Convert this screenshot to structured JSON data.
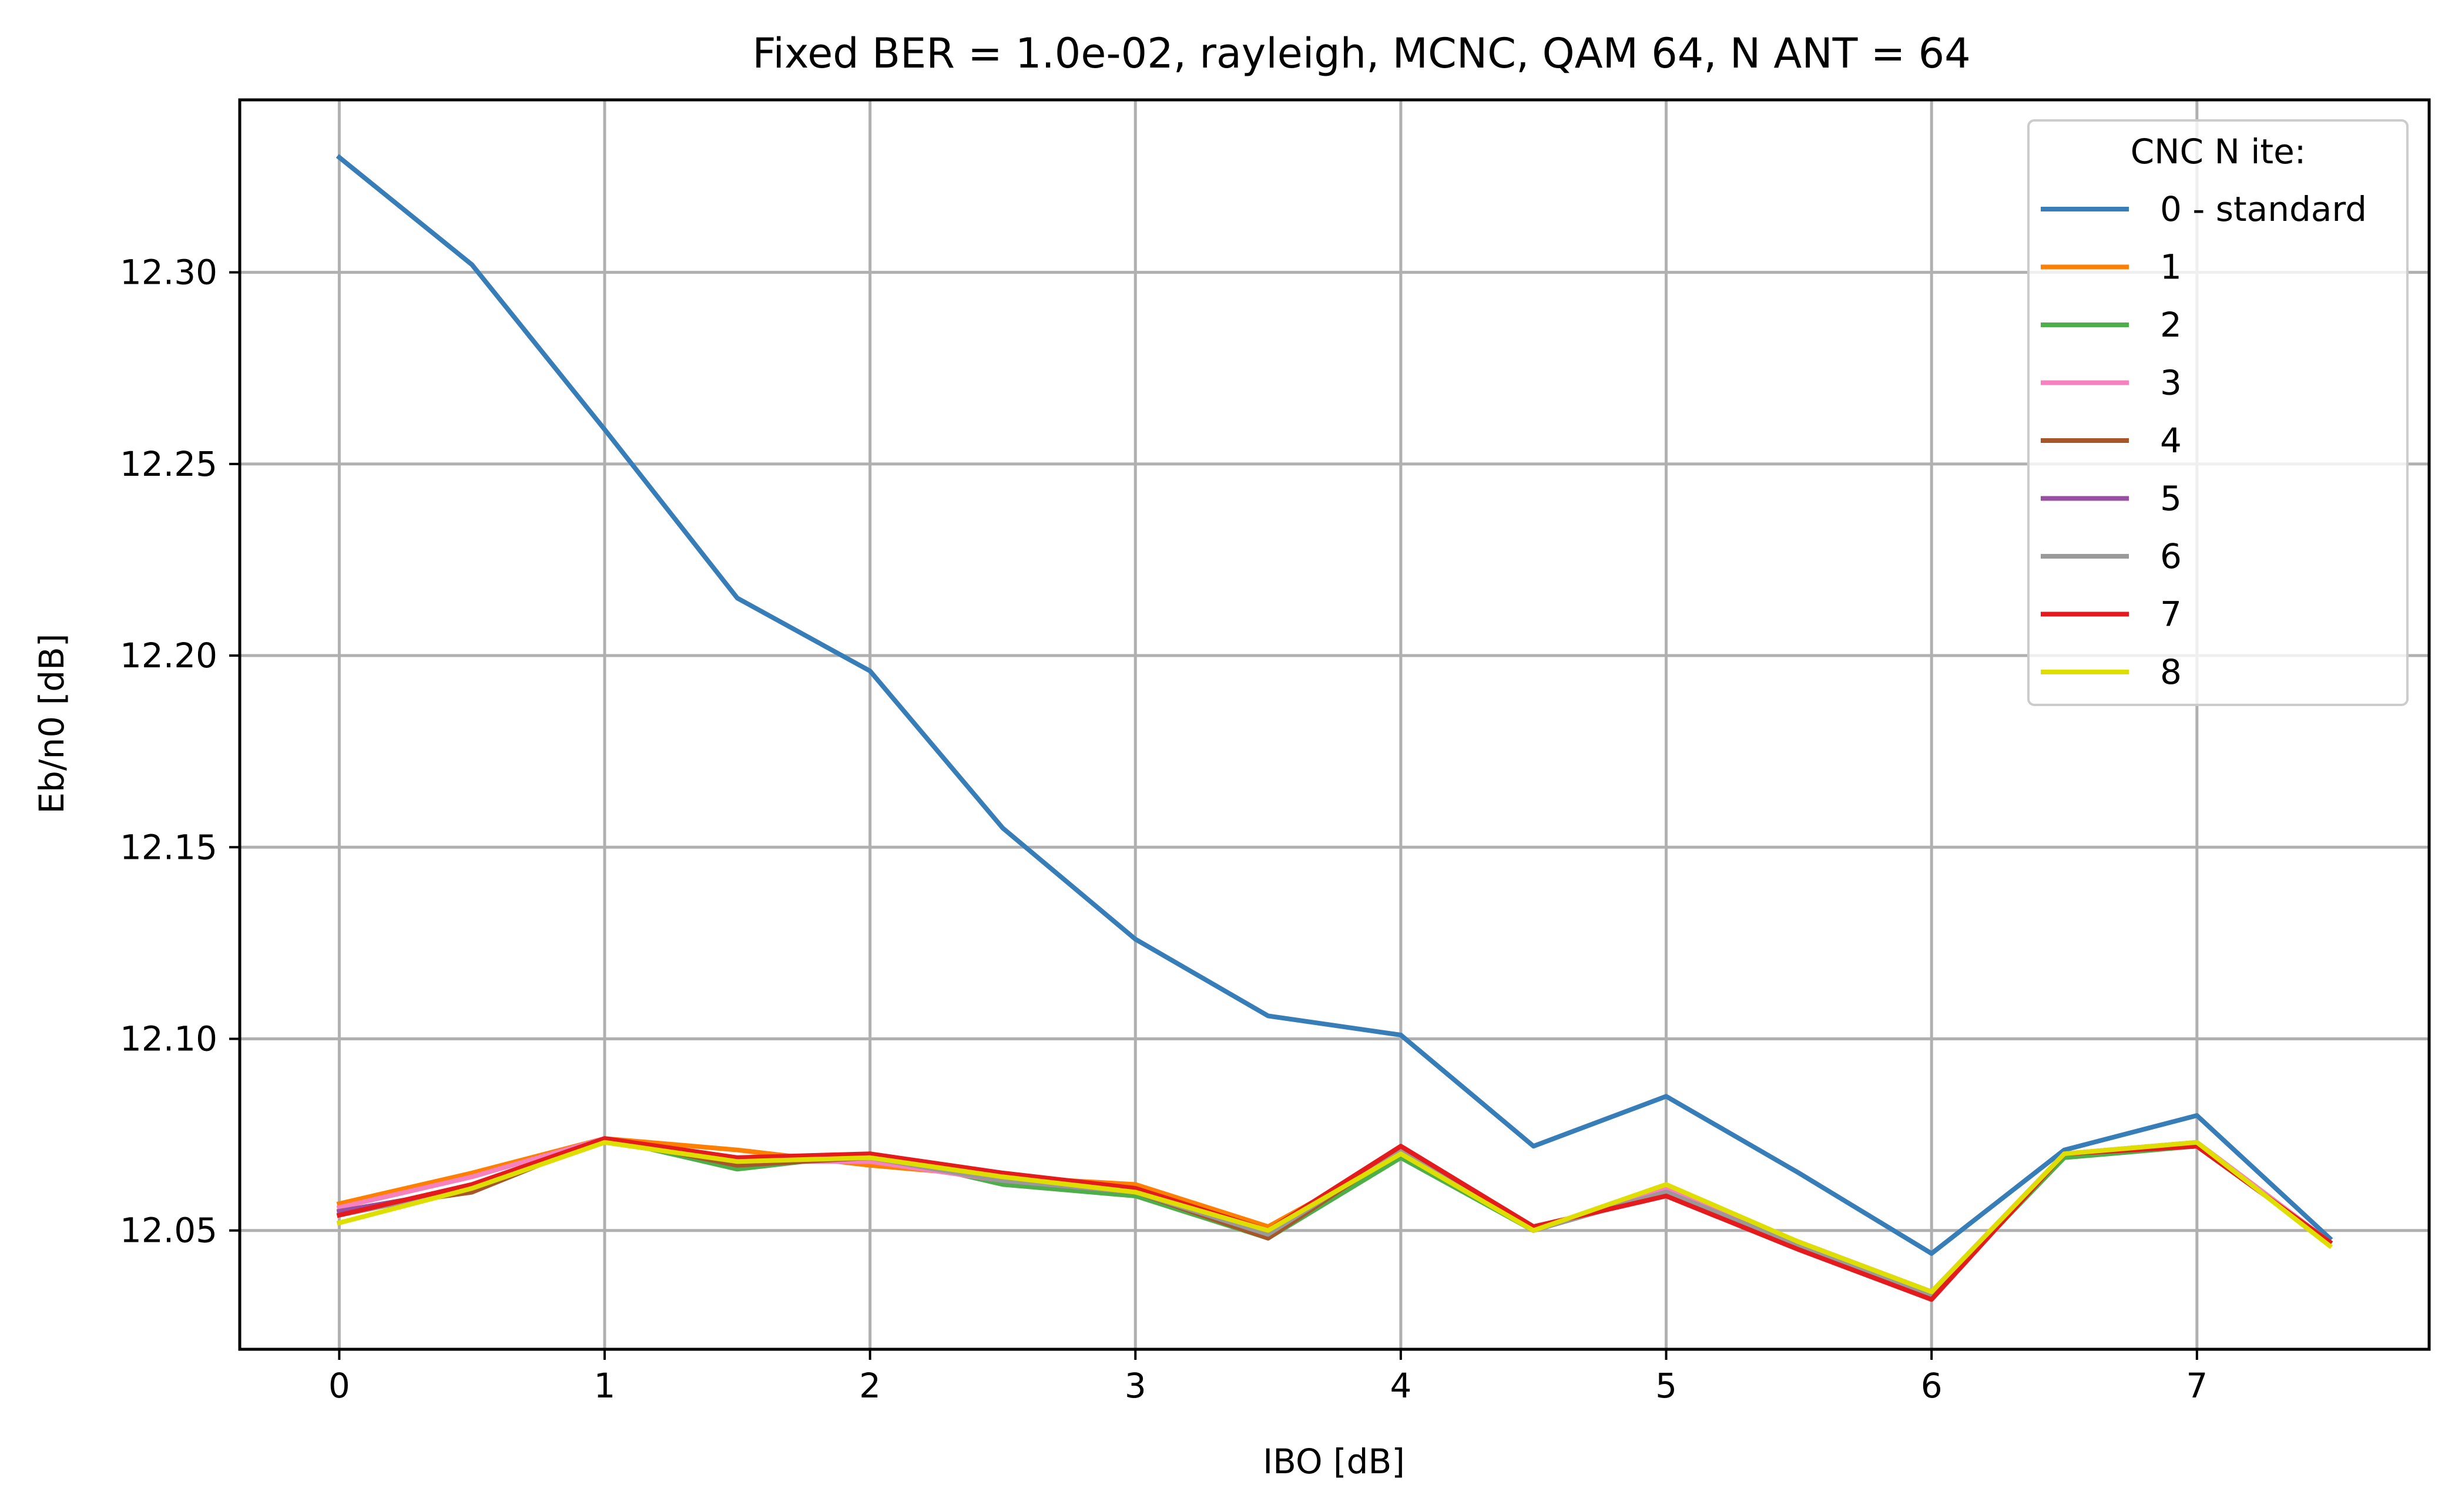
{
  "chart_data": {
    "type": "line",
    "title": "Fixed BER = 1.0e-02, rayleigh, MCNC, QAM 64, N ANT = 64",
    "xlabel": "IBO [dB]",
    "ylabel": "Eb/n0 [dB]",
    "xlim": [
      -0.375,
      7.875
    ],
    "ylim": [
      12.019,
      12.345
    ],
    "xticks": [
      0,
      1,
      2,
      3,
      4,
      5,
      6,
      7
    ],
    "xtick_labels": [
      "0",
      "1",
      "2",
      "3",
      "4",
      "5",
      "6",
      "7"
    ],
    "yticks": [
      12.05,
      12.1,
      12.15,
      12.2,
      12.25,
      12.3
    ],
    "ytick_labels": [
      "12.05",
      "12.10",
      "12.15",
      "12.20",
      "12.25",
      "12.30"
    ],
    "grid": true,
    "legend": {
      "title": "CNC N ite:",
      "position": "top-right"
    },
    "x": [
      0,
      0.5,
      1,
      1.5,
      2,
      2.5,
      3,
      3.5,
      4,
      4.5,
      5,
      5.5,
      6,
      6.5,
      7,
      7.5
    ],
    "series": [
      {
        "name": "0 - standard",
        "color": "#377eb8",
        "values": [
          12.33,
          12.302,
          12.259,
          12.215,
          12.196,
          12.155,
          12.126,
          12.106,
          12.101,
          12.072,
          12.085,
          12.065,
          12.044,
          12.071,
          12.08,
          12.048
        ]
      },
      {
        "name": "1",
        "color": "#ff7f00",
        "values": [
          12.057,
          12.065,
          12.074,
          12.071,
          12.067,
          12.064,
          12.062,
          12.051,
          12.07,
          12.05,
          12.061,
          12.047,
          12.034,
          12.07,
          12.073,
          12.047
        ]
      },
      {
        "name": "2",
        "color": "#4daf4a",
        "values": [
          12.055,
          12.061,
          12.074,
          12.066,
          12.07,
          12.062,
          12.059,
          12.048,
          12.069,
          12.05,
          12.061,
          12.046,
          12.033,
          12.069,
          12.072,
          12.047
        ]
      },
      {
        "name": "3",
        "color": "#f781bf",
        "values": [
          12.056,
          12.064,
          12.074,
          12.068,
          12.068,
          12.063,
          12.061,
          12.05,
          12.071,
          12.05,
          12.061,
          12.047,
          12.034,
          12.07,
          12.073,
          12.047
        ]
      },
      {
        "name": "4",
        "color": "#a65628",
        "values": [
          12.055,
          12.06,
          12.074,
          12.067,
          12.069,
          12.063,
          12.06,
          12.048,
          12.071,
          12.05,
          12.06,
          12.046,
          12.033,
          12.07,
          12.072,
          12.047
        ]
      },
      {
        "name": "5",
        "color": "#984ea3",
        "values": [
          12.055,
          12.061,
          12.074,
          12.068,
          12.069,
          12.063,
          12.06,
          12.049,
          12.071,
          12.05,
          12.06,
          12.046,
          12.033,
          12.07,
          12.072,
          12.047
        ]
      },
      {
        "name": "6",
        "color": "#999999",
        "values": [
          12.054,
          12.061,
          12.073,
          12.068,
          12.069,
          12.063,
          12.06,
          12.049,
          12.071,
          12.05,
          12.06,
          12.046,
          12.033,
          12.07,
          12.072,
          12.047
        ]
      },
      {
        "name": "7",
        "color": "#e41a1c",
        "values": [
          12.054,
          12.062,
          12.074,
          12.069,
          12.07,
          12.065,
          12.061,
          12.05,
          12.072,
          12.051,
          12.059,
          12.045,
          12.032,
          12.07,
          12.072,
          12.047
        ]
      },
      {
        "name": "8",
        "color": "#dede00",
        "values": [
          12.052,
          12.061,
          12.073,
          12.068,
          12.069,
          12.064,
          12.06,
          12.05,
          12.07,
          12.05,
          12.062,
          12.047,
          12.034,
          12.07,
          12.073,
          12.046
        ]
      }
    ]
  }
}
